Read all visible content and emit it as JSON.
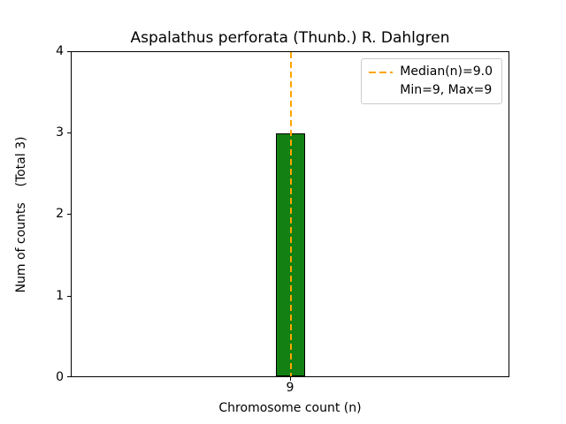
{
  "chart_data": {
    "type": "bar",
    "title": "Aspalathus perforata (Thunb.) R. Dahlgren",
    "categories": [
      "9"
    ],
    "values": [
      3
    ],
    "xlabel": "Chromosome count (n)",
    "ylabel": "Num of counts    (Total 3)",
    "ylim": [
      0,
      4
    ],
    "yticks": [
      "4",
      "3",
      "2",
      "1",
      "0"
    ],
    "xticks": [
      "9"
    ],
    "grid": false,
    "bar_color": "#128012",
    "bar_edge_color": "#000000",
    "median_line": {
      "x": 9,
      "style": "dashed",
      "color": "#ffa500"
    },
    "legend": {
      "position": "upper right",
      "entries": [
        {
          "label": "Median(n)=9.0",
          "marker": "dashed-line",
          "color": "#ffa500"
        },
        {
          "label": "Min=9, Max=9",
          "marker": "none"
        }
      ]
    },
    "total_counts": 3
  }
}
